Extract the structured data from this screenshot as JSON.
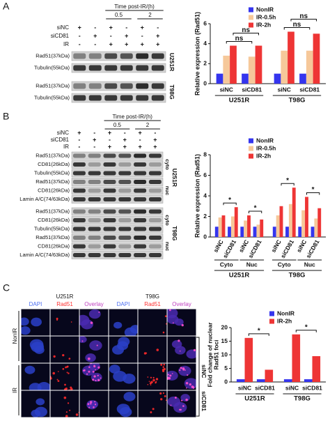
{
  "panel_labels": [
    "A",
    "B",
    "C"
  ],
  "blot_a": {
    "time_label": "Time post-IR/(h)",
    "times": [
      "0.5",
      "2"
    ],
    "conditions": [
      {
        "label": "siNC",
        "signs": [
          "+",
          "-",
          "+",
          "-",
          "+",
          "-"
        ]
      },
      {
        "label": "siCD81",
        "signs": [
          "-",
          "+",
          "-",
          "+",
          "-",
          "+"
        ]
      },
      {
        "label": "IR",
        "signs": [
          "-",
          "-",
          "+",
          "+",
          "+",
          "+"
        ]
      }
    ],
    "blocks": [
      {
        "cell_line": "U251R",
        "rows": [
          "Rad51(37kDa)",
          "Tubulin(55kDa)"
        ]
      },
      {
        "cell_line": "T98G",
        "rows": [
          "Rad51(37kDa)",
          "Tubulin(55kDa)"
        ]
      }
    ]
  },
  "blot_b": {
    "time_label": "Time post-IR/(h)",
    "times": [
      "0.5",
      "2"
    ],
    "conditions": [
      {
        "label": "siNC",
        "signs": [
          "+",
          "-",
          "+",
          "-",
          "+",
          "-"
        ]
      },
      {
        "label": "siCD81",
        "signs": [
          "-",
          "+",
          "-",
          "+",
          "-",
          "+"
        ]
      },
      {
        "label": "IR",
        "signs": [
          "-",
          "-",
          "+",
          "+",
          "+",
          "+"
        ]
      }
    ],
    "blocks": [
      {
        "cell_line": "U251R",
        "fractions": [
          {
            "label": "cyto",
            "rows": [
              "Rad51(37kDa)",
              "CD81(26kDa)",
              "Tubulin(55kDa)"
            ]
          },
          {
            "label": "nuc",
            "rows": [
              "Rad51(37kDa)",
              "CD81(26kDa)",
              "Lamin A/C(74/63kDa)"
            ]
          }
        ]
      },
      {
        "cell_line": "T98G",
        "fractions": [
          {
            "label": "cyto",
            "rows": [
              "Rad51(37kDa)",
              "CD81(26kDa)",
              "Tubulin(55kDa)"
            ]
          },
          {
            "label": "nuc",
            "rows": [
              "Rad51(37kDa)",
              "CD81(26kDa)",
              "Lamin A/C(74/63kDa)"
            ]
          }
        ]
      }
    ]
  },
  "microscopy": {
    "cell_lines": [
      {
        "label": "U251R",
        "channels": [
          "DAPI",
          "Rad51",
          "Overlay"
        ]
      },
      {
        "label": "T98G",
        "channels": [
          "DAPI",
          "Rad51",
          "Overlay"
        ]
      }
    ],
    "conditions": [
      "NonIR",
      "IR"
    ],
    "treatments": [
      "siNC",
      "siCD81"
    ]
  },
  "chart_data": [
    {
      "type": "bar",
      "ylabel": "Relative expression (Rad51)",
      "ylim": [
        0,
        6
      ],
      "yticks": [
        0,
        2,
        4,
        6
      ],
      "categories": [
        "siNC",
        "siCD81",
        "siNC",
        "siCD81"
      ],
      "groups": [
        "U251R",
        "T98G"
      ],
      "legend": "top",
      "series": [
        {
          "name": "NonIR",
          "color": "#3535ee",
          "values": [
            1,
            1,
            1,
            1
          ]
        },
        {
          "name": "IR-0.5h",
          "color": "#f6c89a",
          "values": [
            2.8,
            2.7,
            3.3,
            3.3
          ]
        },
        {
          "name": "IR-2h",
          "color": "#ee3535",
          "values": [
            3.8,
            3.8,
            5.2,
            5.0
          ]
        }
      ],
      "annotations": [
        "ns",
        "ns",
        "ns",
        "ns"
      ]
    },
    {
      "type": "bar",
      "ylabel": "Relative expression (Rad51)",
      "ylim": [
        0,
        8
      ],
      "yticks": [
        0,
        2,
        4,
        6,
        8
      ],
      "categories": [
        "siNC",
        "siCD81",
        "siNC",
        "siCD81",
        "siNC",
        "siCD81",
        "siNC",
        "siCD81"
      ],
      "subgroups": [
        "Cyto",
        "Nuc",
        "Cyto",
        "Nuc"
      ],
      "groups": [
        "U251R",
        "T98G"
      ],
      "legend": "top",
      "series": [
        {
          "name": "NonIR",
          "color": "#3535ee",
          "values": [
            1,
            1,
            1,
            1,
            1,
            1,
            1,
            1
          ]
        },
        {
          "name": "IR-0.5h",
          "color": "#f6c89a",
          "values": [
            1.9,
            2.0,
            1.6,
            1.2,
            2.1,
            3.2,
            2.6,
            1.8
          ]
        },
        {
          "name": "IR-2h",
          "color": "#ee3535",
          "values": [
            2.1,
            2.9,
            2.1,
            1.7,
            3.0,
            4.8,
            3.9,
            2.8
          ]
        }
      ],
      "annotations": [
        "*",
        "*",
        "*",
        "*"
      ]
    },
    {
      "type": "bar",
      "ylabel": [
        "Fold change of nuclear",
        "Rad51 foci"
      ],
      "ylim": [
        0,
        20
      ],
      "yticks": [
        0,
        5,
        10,
        15,
        20
      ],
      "categories": [
        "siNC",
        "siCD81",
        "siNC",
        "siCD81"
      ],
      "groups": [
        "U251R",
        "T98G"
      ],
      "legend": "top",
      "series": [
        {
          "name": "NonIR",
          "color": "#3535ee",
          "values": [
            1,
            1,
            1,
            1
          ]
        },
        {
          "name": "IR-2h",
          "color": "#ee3535",
          "values": [
            16.2,
            4.5,
            17.5,
            9.5
          ]
        }
      ],
      "annotations": [
        "*",
        "*"
      ]
    }
  ]
}
